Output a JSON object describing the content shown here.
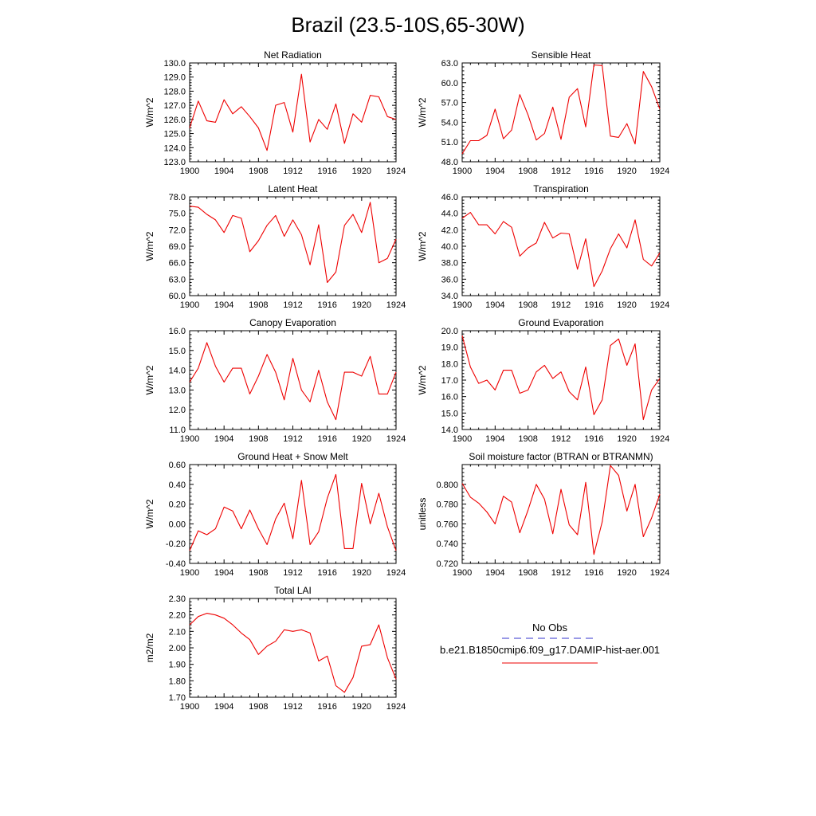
{
  "figure_title": "Brazil (23.5-10S,65-30W)",
  "legend": {
    "obs_label": "No Obs",
    "obs_color": "#3333cc",
    "model_label": "b.e21.B1850cmip6.f09_g17.DAMIP-hist-aer.001",
    "model_color": "#ee0000"
  },
  "chart_data": [
    {
      "type": "line",
      "title": "Net Radiation",
      "ylabel": "W/m^2",
      "xlim": [
        1900,
        1924
      ],
      "ylim": [
        123.0,
        130.0
      ],
      "xticks": [
        "1900",
        "1904",
        "1908",
        "1912",
        "1916",
        "1920",
        "1924"
      ],
      "yticks": [
        "123.0",
        "124.0",
        "125.0",
        "126.0",
        "127.0",
        "128.0",
        "129.0",
        "130.0"
      ],
      "x": [
        1900,
        1901,
        1902,
        1903,
        1904,
        1905,
        1906,
        1907,
        1908,
        1909,
        1910,
        1911,
        1912,
        1913,
        1914,
        1915,
        1916,
        1917,
        1918,
        1919,
        1920,
        1921,
        1922,
        1923,
        1924
      ],
      "series": [
        {
          "values": [
            125.4,
            127.3,
            125.9,
            125.8,
            127.4,
            126.4,
            126.9,
            126.2,
            125.4,
            123.8,
            127.0,
            127.2,
            125.1,
            129.2,
            124.4,
            126.0,
            125.3,
            127.1,
            124.3,
            126.4,
            125.8,
            127.7,
            127.6,
            126.2,
            126.0
          ]
        }
      ]
    },
    {
      "type": "line",
      "title": "Sensible Heat",
      "ylabel": "W/m^2",
      "xlim": [
        1900,
        1924
      ],
      "ylim": [
        48.0,
        63.0
      ],
      "xticks": [
        "1900",
        "1904",
        "1908",
        "1912",
        "1916",
        "1920",
        "1924"
      ],
      "yticks": [
        "48.0",
        "51.0",
        "54.0",
        "57.0",
        "60.0",
        "63.0"
      ],
      "x": [
        1900,
        1901,
        1902,
        1903,
        1904,
        1905,
        1906,
        1907,
        1908,
        1909,
        1910,
        1911,
        1912,
        1913,
        1914,
        1915,
        1916,
        1917,
        1918,
        1919,
        1920,
        1921,
        1922,
        1923,
        1924
      ],
      "series": [
        {
          "values": [
            49.2,
            51.2,
            51.2,
            52.0,
            56.0,
            51.5,
            52.8,
            58.2,
            55.1,
            51.3,
            52.3,
            56.3,
            51.4,
            57.8,
            59.1,
            53.3,
            62.7,
            62.6,
            51.9,
            51.7,
            53.8,
            50.7,
            61.7,
            59.4,
            56.0
          ]
        }
      ]
    },
    {
      "type": "line",
      "title": "Latent Heat",
      "ylabel": "W/m^2",
      "xlim": [
        1900,
        1924
      ],
      "ylim": [
        60.0,
        78.0
      ],
      "xticks": [
        "1900",
        "1904",
        "1908",
        "1912",
        "1916",
        "1920",
        "1924"
      ],
      "yticks": [
        "60.0",
        "63.0",
        "66.0",
        "69.0",
        "72.0",
        "75.0",
        "78.0"
      ],
      "x": [
        1900,
        1901,
        1902,
        1903,
        1904,
        1905,
        1906,
        1907,
        1908,
        1909,
        1910,
        1911,
        1912,
        1913,
        1914,
        1915,
        1916,
        1917,
        1918,
        1919,
        1920,
        1921,
        1922,
        1923,
        1924
      ],
      "series": [
        {
          "values": [
            76.3,
            76.1,
            74.8,
            73.8,
            71.5,
            74.6,
            74.1,
            68.0,
            70.0,
            72.8,
            74.6,
            70.8,
            73.8,
            71.1,
            65.6,
            72.9,
            62.4,
            64.3,
            72.8,
            74.8,
            71.5,
            77.0,
            66.0,
            66.8,
            70.3
          ]
        }
      ]
    },
    {
      "type": "line",
      "title": "Transpiration",
      "ylabel": "W/m^2",
      "xlim": [
        1900,
        1924
      ],
      "ylim": [
        34.0,
        46.0
      ],
      "xticks": [
        "1900",
        "1904",
        "1908",
        "1912",
        "1916",
        "1920",
        "1924"
      ],
      "yticks": [
        "34.0",
        "36.0",
        "38.0",
        "40.0",
        "42.0",
        "44.0",
        "46.0"
      ],
      "x": [
        1900,
        1901,
        1902,
        1903,
        1904,
        1905,
        1906,
        1907,
        1908,
        1909,
        1910,
        1911,
        1912,
        1913,
        1914,
        1915,
        1916,
        1917,
        1918,
        1919,
        1920,
        1921,
        1922,
        1923,
        1924
      ],
      "series": [
        {
          "values": [
            43.4,
            44.1,
            42.6,
            42.6,
            41.5,
            43.0,
            42.3,
            38.8,
            39.8,
            40.4,
            42.9,
            41.0,
            41.6,
            41.5,
            37.2,
            40.9,
            35.1,
            37.0,
            39.7,
            41.5,
            39.8,
            43.2,
            38.4,
            37.6,
            39.2
          ]
        }
      ]
    },
    {
      "type": "line",
      "title": "Canopy Evaporation",
      "ylabel": "W/m^2",
      "xlim": [
        1900,
        1924
      ],
      "ylim": [
        11.0,
        16.0
      ],
      "xticks": [
        "1900",
        "1904",
        "1908",
        "1912",
        "1916",
        "1920",
        "1924"
      ],
      "yticks": [
        "11.0",
        "12.0",
        "13.0",
        "14.0",
        "15.0",
        "16.0"
      ],
      "x": [
        1900,
        1901,
        1902,
        1903,
        1904,
        1905,
        1906,
        1907,
        1908,
        1909,
        1910,
        1911,
        1912,
        1913,
        1914,
        1915,
        1916,
        1917,
        1918,
        1919,
        1920,
        1921,
        1922,
        1923,
        1924
      ],
      "series": [
        {
          "values": [
            13.4,
            14.1,
            15.4,
            14.2,
            13.4,
            14.1,
            14.1,
            12.8,
            13.7,
            14.8,
            13.9,
            12.5,
            14.6,
            13.0,
            12.4,
            14.0,
            12.4,
            11.5,
            13.9,
            13.9,
            13.7,
            14.7,
            12.8,
            12.8,
            13.9
          ]
        }
      ]
    },
    {
      "type": "line",
      "title": "Ground Evaporation",
      "ylabel": "W/m^2",
      "xlim": [
        1900,
        1924
      ],
      "ylim": [
        14.0,
        20.0
      ],
      "xticks": [
        "1900",
        "1904",
        "1908",
        "1912",
        "1916",
        "1920",
        "1924"
      ],
      "yticks": [
        "14.0",
        "15.0",
        "16.0",
        "17.0",
        "18.0",
        "19.0",
        "20.0"
      ],
      "x": [
        1900,
        1901,
        1902,
        1903,
        1904,
        1905,
        1906,
        1907,
        1908,
        1909,
        1910,
        1911,
        1912,
        1913,
        1914,
        1915,
        1916,
        1917,
        1918,
        1919,
        1920,
        1921,
        1922,
        1923,
        1924
      ],
      "series": [
        {
          "values": [
            19.7,
            17.8,
            16.8,
            17.0,
            16.4,
            17.6,
            17.6,
            16.2,
            16.4,
            17.5,
            17.9,
            17.1,
            17.5,
            16.3,
            15.8,
            17.8,
            14.9,
            15.8,
            19.1,
            19.5,
            17.9,
            19.2,
            14.6,
            16.4,
            17.1
          ]
        }
      ]
    },
    {
      "type": "line",
      "title": "Ground Heat + Snow Melt",
      "ylabel": "W/m^2",
      "xlim": [
        1900,
        1924
      ],
      "ylim": [
        -0.4,
        0.6
      ],
      "xticks": [
        "1900",
        "1904",
        "1908",
        "1912",
        "1916",
        "1920",
        "1924"
      ],
      "yticks": [
        "-0.40",
        "-0.20",
        "0.00",
        "0.20",
        "0.40",
        "0.60"
      ],
      "x": [
        1900,
        1901,
        1902,
        1903,
        1904,
        1905,
        1906,
        1907,
        1908,
        1909,
        1910,
        1911,
        1912,
        1913,
        1914,
        1915,
        1916,
        1917,
        1918,
        1919,
        1920,
        1921,
        1922,
        1923,
        1924
      ],
      "series": [
        {
          "values": [
            -0.27,
            -0.07,
            -0.11,
            -0.05,
            0.17,
            0.13,
            -0.05,
            0.14,
            -0.05,
            -0.21,
            0.05,
            0.21,
            -0.15,
            0.44,
            -0.21,
            -0.08,
            0.26,
            0.5,
            -0.25,
            -0.25,
            0.41,
            0.0,
            0.31,
            -0.03,
            -0.27
          ]
        }
      ]
    },
    {
      "type": "line",
      "title": "Soil moisture factor (BTRAN or BTRANMN)",
      "ylabel": "unitless",
      "xlim": [
        1900,
        1924
      ],
      "ylim": [
        0.72,
        0.82
      ],
      "xticks": [
        "1900",
        "1904",
        "1908",
        "1912",
        "1916",
        "1920",
        "1924"
      ],
      "yticks": [
        "0.720",
        "0.740",
        "0.760",
        "0.780",
        "0.800"
      ],
      "x": [
        1900,
        1901,
        1902,
        1903,
        1904,
        1905,
        1906,
        1907,
        1908,
        1909,
        1910,
        1911,
        1912,
        1913,
        1914,
        1915,
        1916,
        1917,
        1918,
        1919,
        1920,
        1921,
        1922,
        1923,
        1924
      ],
      "series": [
        {
          "values": [
            0.801,
            0.787,
            0.781,
            0.772,
            0.76,
            0.788,
            0.782,
            0.751,
            0.774,
            0.8,
            0.785,
            0.75,
            0.795,
            0.759,
            0.749,
            0.802,
            0.729,
            0.762,
            0.819,
            0.809,
            0.773,
            0.8,
            0.747,
            0.766,
            0.79
          ]
        }
      ]
    },
    {
      "type": "line",
      "title": "Total LAI",
      "ylabel": "m2/m2",
      "xlim": [
        1900,
        1924
      ],
      "ylim": [
        1.7,
        2.3
      ],
      "xticks": [
        "1900",
        "1904",
        "1908",
        "1912",
        "1916",
        "1920",
        "1924"
      ],
      "yticks": [
        "1.70",
        "1.80",
        "1.90",
        "2.00",
        "2.10",
        "2.20",
        "2.30"
      ],
      "x": [
        1900,
        1901,
        1902,
        1903,
        1904,
        1905,
        1906,
        1907,
        1908,
        1909,
        1910,
        1911,
        1912,
        1913,
        1914,
        1915,
        1916,
        1917,
        1918,
        1919,
        1920,
        1921,
        1922,
        1923,
        1924
      ],
      "series": [
        {
          "values": [
            2.14,
            2.19,
            2.21,
            2.2,
            2.18,
            2.14,
            2.09,
            2.05,
            1.96,
            2.01,
            2.04,
            2.11,
            2.1,
            2.11,
            2.09,
            1.92,
            1.95,
            1.77,
            1.73,
            1.82,
            2.01,
            2.02,
            2.14,
            1.94,
            1.81
          ]
        }
      ]
    }
  ]
}
